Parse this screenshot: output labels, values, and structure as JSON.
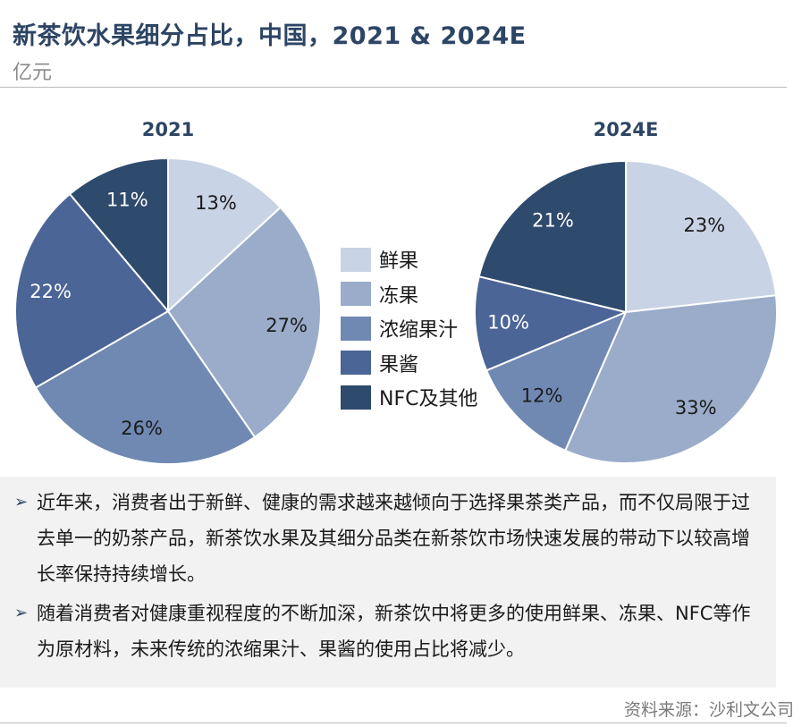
{
  "title": "新茶饮水果细分占比，中国，2021 & 2024E",
  "unit": "亿元",
  "legend": [
    "鲜果",
    "冻果",
    "浓缩果汁",
    "果酱",
    "NFC及其他"
  ],
  "colors": [
    "#c8d3e5",
    "#9aacca",
    "#6f89b3",
    "#4a6596",
    "#2e4a6d"
  ],
  "chart_data": [
    {
      "type": "pie",
      "title": "2021",
      "categories": [
        "鲜果",
        "冻果",
        "浓缩果汁",
        "果酱",
        "NFC及其他"
      ],
      "values": [
        13,
        27,
        26,
        22,
        11
      ],
      "labels": [
        "13%",
        "27%",
        "26%",
        "22%",
        "11%"
      ]
    },
    {
      "type": "pie",
      "title": "2024E",
      "categories": [
        "鲜果",
        "冻果",
        "浓缩果汁",
        "果酱",
        "NFC及其他"
      ],
      "values": [
        23,
        33,
        12,
        10,
        21
      ],
      "labels": [
        "23%",
        "33%",
        "12%",
        "10%",
        "21%"
      ]
    }
  ],
  "notes": [
    "近年来，消费者出于新鲜、健康的需求越来越倾向于选择果茶类产品，而不仅局限于过去单一的奶茶产品，新茶饮水果及其细分品类在新茶饮市场快速发展的带动下以较高增长率保持持续增长。",
    "随着消费者对健康重视程度的不断加深，新茶饮中将更多的使用鲜果、冻果、NFC等作为原材料，未来传统的浓缩果汁、果酱的使用占比将减少。"
  ],
  "bullet_icon": "triangle-right-icon",
  "source": "资料来源：沙利文公司"
}
